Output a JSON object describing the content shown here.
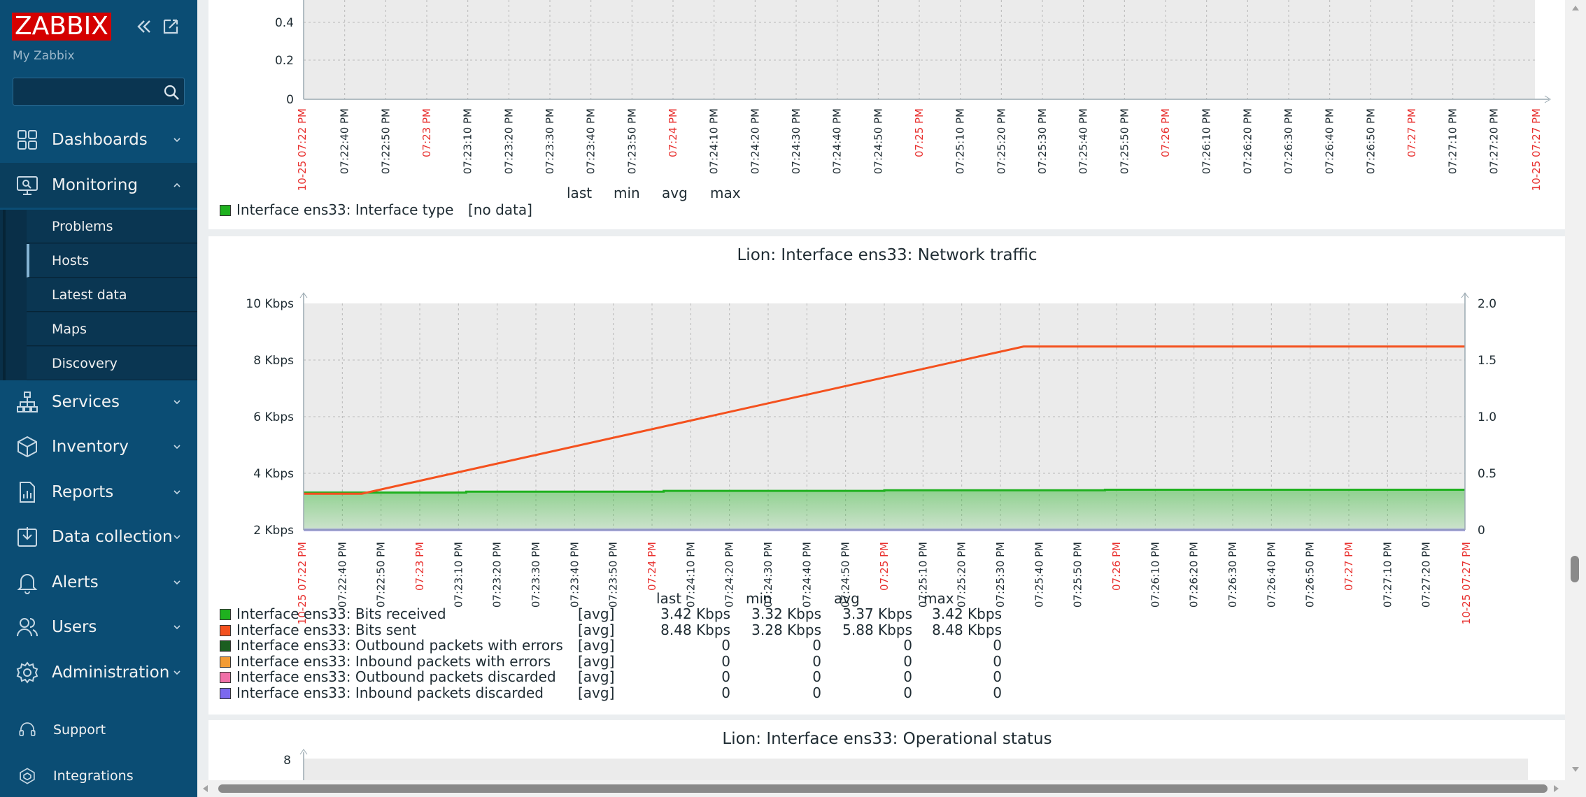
{
  "sidebar": {
    "logo": "ZABBIX",
    "subtitle": "My Zabbix",
    "search_placeholder": "",
    "menu": [
      {
        "label": "Dashboards",
        "icon": "dashboard-icon"
      },
      {
        "label": "Monitoring",
        "icon": "monitoring-icon"
      },
      {
        "label": "Services",
        "icon": "services-icon"
      },
      {
        "label": "Inventory",
        "icon": "inventory-icon"
      },
      {
        "label": "Reports",
        "icon": "reports-icon"
      },
      {
        "label": "Data collection",
        "icon": "data-collection-icon"
      },
      {
        "label": "Alerts",
        "icon": "alerts-icon"
      },
      {
        "label": "Users",
        "icon": "users-icon"
      },
      {
        "label": "Administration",
        "icon": "administration-icon"
      }
    ],
    "monitoring_sub": [
      "Problems",
      "Hosts",
      "Latest data",
      "Maps",
      "Discovery"
    ],
    "footer": [
      {
        "label": "Support",
        "icon": "headset-icon"
      },
      {
        "label": "Integrations",
        "icon": "integrations-icon"
      }
    ]
  },
  "graph1": {
    "yticks": [
      "0.4",
      "0.2",
      "0"
    ],
    "time_start": "10-25 07:22 PM",
    "time_end": "10-25 07:27 PM",
    "xticks": [
      "07:22:40 PM",
      "07:22:50 PM",
      "07:23 PM",
      "07:23:10 PM",
      "07:23:20 PM",
      "07:23:30 PM",
      "07:23:40 PM",
      "07:23:50 PM",
      "07:24 PM",
      "07:24:10 PM",
      "07:24:20 PM",
      "07:24:30 PM",
      "07:24:40 PM",
      "07:24:50 PM",
      "07:25 PM",
      "07:25:10 PM",
      "07:25:20 PM",
      "07:25:30 PM",
      "07:25:40 PM",
      "07:25:50 PM",
      "07:26 PM",
      "07:26:10 PM",
      "07:26:20 PM",
      "07:26:30 PM",
      "07:26:40 PM",
      "07:26:50 PM",
      "07:27 PM",
      "07:27:10 PM",
      "07:27:20 PM"
    ],
    "legend_heads": [
      "last",
      "min",
      "avg",
      "max"
    ],
    "legend_item": {
      "name": "Interface ens33: Interface type",
      "value": "[no data]",
      "color": "#1fb11f"
    }
  },
  "chart_data": {
    "type": "line",
    "title": "Lion: Interface ens33: Network traffic",
    "x": [
      "07:22:30 PM",
      "07:22:45 PM",
      "07:22:55 PM",
      "07:23:20 PM",
      "07:23:21 PM",
      "07:24:20 PM",
      "07:24:21 PM",
      "07:25:20 PM",
      "07:25:21 PM",
      "07:25:52 PM",
      "07:27:25 PM"
    ],
    "yleft_ticks": [
      "10 Kbps",
      "8 Kbps",
      "6 Kbps",
      "4 Kbps",
      "2 Kbps"
    ],
    "yleft_range": [
      2,
      10
    ],
    "yright_ticks": [
      "2.0",
      "1.5",
      "1.0",
      "0.5",
      "0"
    ],
    "yright_range": [
      0,
      2
    ],
    "xticks": [
      "07:22:40 PM",
      "07:22:50 PM",
      "07:23 PM",
      "07:23:10 PM",
      "07:23:20 PM",
      "07:23:30 PM",
      "07:23:40 PM",
      "07:23:50 PM",
      "07:24 PM",
      "07:24:10 PM",
      "07:24:20 PM",
      "07:24:30 PM",
      "07:24:40 PM",
      "07:24:50 PM",
      "07:25 PM",
      "07:25:10 PM",
      "07:25:20 PM",
      "07:25:30 PM",
      "07:25:40 PM",
      "07:25:50 PM",
      "07:26 PM",
      "07:26:10 PM",
      "07:26:20 PM",
      "07:26:30 PM",
      "07:26:40 PM",
      "07:26:50 PM",
      "07:27 PM",
      "07:27:10 PM",
      "07:27:20 PM"
    ],
    "time_start": "10-25 07:22 PM",
    "time_end": "10-25 07:27 PM",
    "series": [
      {
        "name": "Interface ens33: Bits received",
        "color": "#1fb11f",
        "fill": true,
        "points": [
          [
            0,
            3.32
          ],
          [
            0.14,
            3.32
          ],
          [
            0.14,
            3.35
          ],
          [
            0.31,
            3.35
          ],
          [
            0.31,
            3.38
          ],
          [
            0.5,
            3.38
          ],
          [
            0.5,
            3.4
          ],
          [
            0.69,
            3.4
          ],
          [
            0.69,
            3.42
          ],
          [
            1.0,
            3.42
          ]
        ]
      },
      {
        "name": "Interface ens33: Bits sent",
        "color": "#f4511e",
        "fill": false,
        "points": [
          [
            0,
            3.28
          ],
          [
            0.05,
            3.28
          ],
          [
            0.62,
            8.48
          ],
          [
            1.0,
            8.48
          ]
        ]
      },
      {
        "name": "Interface ens33: Inbound packets discarded",
        "color": "#7b68ee",
        "fill": false,
        "points": [
          [
            0,
            2.0
          ],
          [
            1.0,
            2.0
          ]
        ]
      }
    ],
    "legend_heads": [
      "last",
      "min",
      "avg",
      "max"
    ],
    "legend_rows": [
      {
        "name": "Interface ens33: Bits received",
        "fn": "[avg]",
        "last": "3.42 Kbps",
        "min": "3.32 Kbps",
        "avg": "3.37 Kbps",
        "max": "3.42 Kbps",
        "color": "#1fb11f"
      },
      {
        "name": "Interface ens33: Bits sent",
        "fn": "[avg]",
        "last": "8.48 Kbps",
        "min": "3.28 Kbps",
        "avg": "5.88 Kbps",
        "max": "8.48 Kbps",
        "color": "#f4511e"
      },
      {
        "name": "Interface ens33: Outbound packets with errors",
        "fn": "[avg]",
        "last": "0",
        "min": "0",
        "avg": "0",
        "max": "0",
        "color": "#1b5e20"
      },
      {
        "name": "Interface ens33: Inbound packets with errors",
        "fn": "[avg]",
        "last": "0",
        "min": "0",
        "avg": "0",
        "max": "0",
        "color": "#f39c35"
      },
      {
        "name": "Interface ens33: Outbound packets discarded",
        "fn": "[avg]",
        "last": "0",
        "min": "0",
        "avg": "0",
        "max": "0",
        "color": "#f06fa8"
      },
      {
        "name": "Interface ens33: Inbound packets discarded",
        "fn": "[avg]",
        "last": "0",
        "min": "0",
        "avg": "0",
        "max": "0",
        "color": "#7b68ee"
      }
    ]
  },
  "graph3": {
    "title": "Lion: Interface ens33: Operational status",
    "ytick": "8"
  },
  "colors": {
    "sidebar": "#0b4d74",
    "accent_red": "#e8312f",
    "grid_bg": "#ebebeb"
  }
}
